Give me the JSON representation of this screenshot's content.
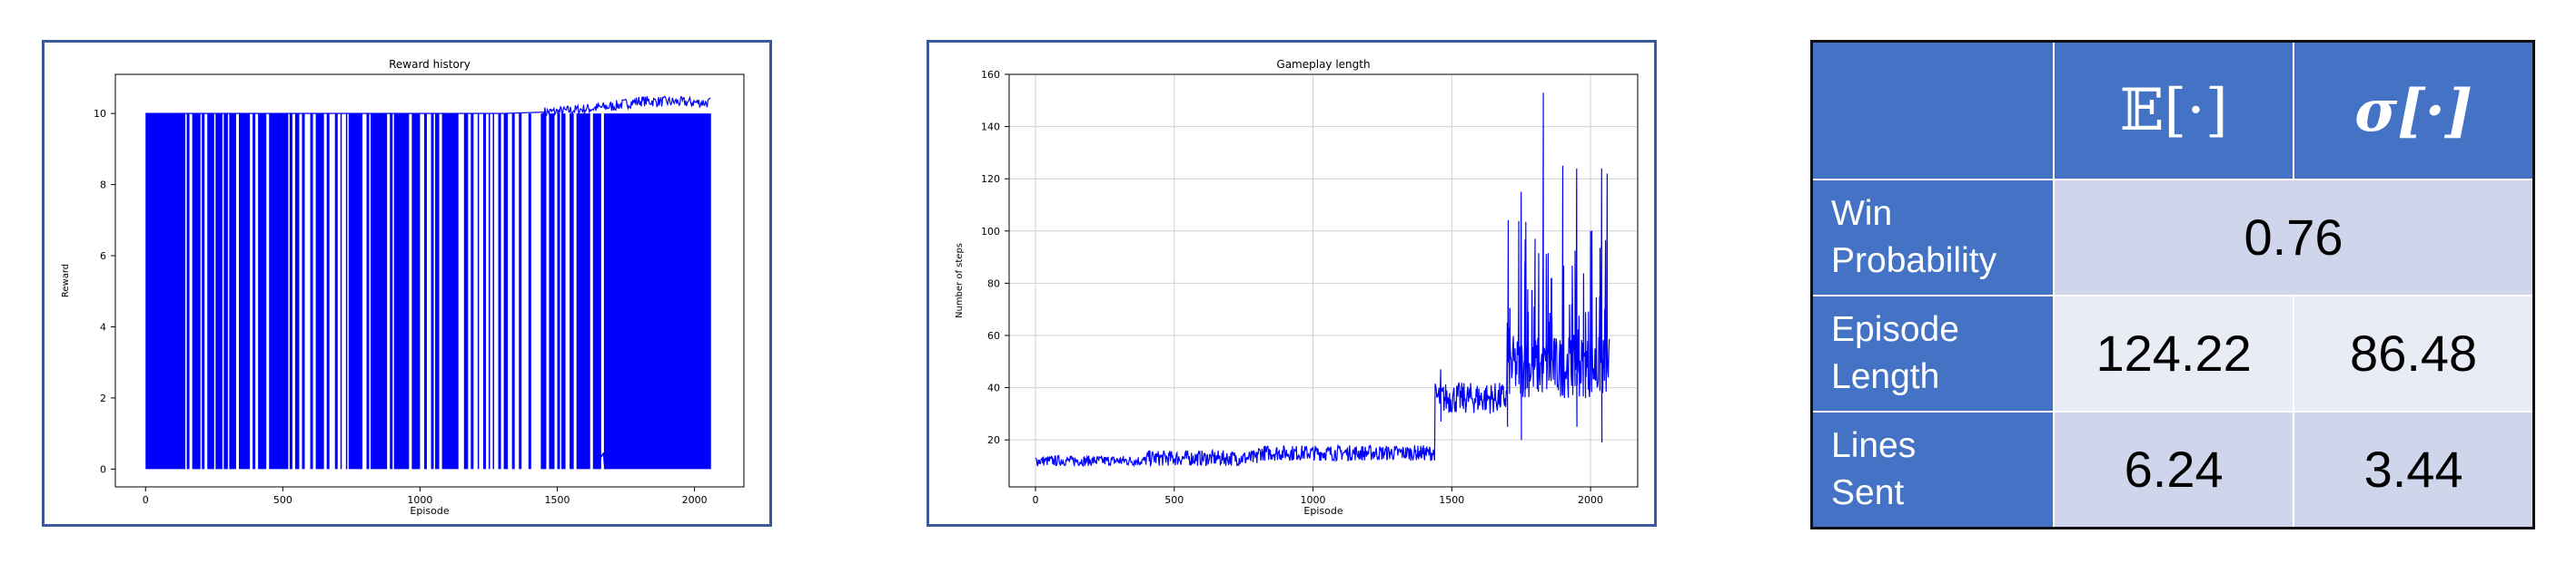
{
  "chart_data": [
    {
      "type": "line",
      "title": "Reward history",
      "xlabel": "Episode",
      "ylabel": "Reward",
      "xlim": [
        -110,
        2180
      ],
      "ylim": [
        -0.5,
        11.1
      ],
      "xticks": [
        0,
        500,
        1000,
        1500,
        2000
      ],
      "yticks": [
        0,
        2,
        4,
        6,
        8,
        10
      ],
      "grid": false,
      "color": "#0000ff",
      "series": [
        {
          "x_range": [
            0,
            2060
          ],
          "level_high": 10,
          "level_low": 0,
          "description_points": [
            [
              0,
              10
            ],
            [
              80,
              10
            ],
            [
              1300,
              10
            ],
            [
              1500,
              10.05
            ],
            [
              1700,
              10.2
            ],
            [
              1800,
              10.35
            ],
            [
              2060,
              10.3
            ]
          ]
        }
      ],
      "low_segments": [
        [
          0,
          145
        ],
        [
          150,
          160
        ],
        [
          170,
          200
        ],
        [
          205,
          215
        ],
        [
          225,
          250
        ],
        [
          255,
          280
        ],
        [
          285,
          300
        ],
        [
          305,
          330
        ],
        [
          340,
          380
        ],
        [
          390,
          400
        ],
        [
          410,
          440
        ],
        [
          450,
          520
        ],
        [
          525,
          535
        ],
        [
          545,
          560
        ],
        [
          570,
          580
        ],
        [
          600,
          610
        ],
        [
          620,
          650
        ],
        [
          660,
          670
        ],
        [
          690,
          700
        ],
        [
          710,
          715
        ],
        [
          730,
          735
        ],
        [
          740,
          790
        ],
        [
          805,
          815
        ],
        [
          820,
          880
        ],
        [
          890,
          900
        ],
        [
          905,
          960
        ],
        [
          970,
          1000
        ],
        [
          1015,
          1025
        ],
        [
          1040,
          1050
        ],
        [
          1055,
          1070
        ],
        [
          1080,
          1140
        ],
        [
          1160,
          1175
        ],
        [
          1185,
          1195
        ],
        [
          1210,
          1215
        ],
        [
          1230,
          1240
        ],
        [
          1250,
          1255
        ],
        [
          1265,
          1270
        ],
        [
          1285,
          1295
        ],
        [
          1305,
          1320
        ],
        [
          1335,
          1345
        ],
        [
          1360,
          1370
        ],
        [
          1395,
          1405
        ],
        [
          1440,
          1460
        ],
        [
          1470,
          1490
        ],
        [
          1500,
          1510
        ],
        [
          1515,
          1530
        ],
        [
          1545,
          1560
        ],
        [
          1570,
          1620
        ],
        [
          1630,
          1660
        ],
        [
          1670,
          2060
        ]
      ]
    },
    {
      "type": "line",
      "title": "Gameplay length",
      "xlabel": "Episode",
      "ylabel": "Number of steps",
      "xlim": [
        -95,
        2170
      ],
      "ylim": [
        2,
        160
      ],
      "xticks": [
        0,
        500,
        1000,
        1500,
        2000
      ],
      "yticks": [
        20,
        40,
        60,
        80,
        100,
        120,
        140,
        160
      ],
      "grid": true,
      "color": "#0000ff",
      "series": [
        {
          "name": "",
          "segments": [
            {
              "x": [
                0,
                400
              ],
              "base": 12,
              "noise": 2
            },
            {
              "x": [
                400,
                800
              ],
              "base": 13,
              "noise": 3
            },
            {
              "x": [
                800,
                1440
              ],
              "base": 15,
              "noise": 3
            },
            {
              "x": [
                1440,
                1700
              ],
              "base": 36,
              "noise": 6
            },
            {
              "x": [
                1700,
                2070
              ],
              "base": 48,
              "noise": 12
            }
          ],
          "peaks": [
            [
              1460,
              47
            ],
            [
              1700,
              65
            ],
            [
              1750,
              115
            ],
            [
              1800,
              97
            ],
            [
              1830,
              153
            ],
            [
              1860,
              82
            ],
            [
              1900,
              125
            ],
            [
              1950,
              124
            ],
            [
              2000,
              100
            ],
            [
              2040,
              124
            ],
            [
              2060,
              122
            ]
          ],
          "dips": [
            [
              1460,
              27
            ],
            [
              1700,
              25
            ],
            [
              1750,
              20
            ],
            [
              1950,
              25
            ],
            [
              2040,
              19
            ]
          ]
        }
      ]
    }
  ],
  "table": {
    "headers": [
      "",
      "𝔼[·]",
      "σ[·]"
    ],
    "rows": [
      {
        "label_lines": [
          "Win",
          "Probability"
        ],
        "merged_value": "0.76"
      },
      {
        "label_lines": [
          "Episode",
          "Length"
        ],
        "mean": "124.22",
        "std": "86.48"
      },
      {
        "label_lines": [
          "Lines",
          "Sent"
        ],
        "mean": "6.24",
        "std": "3.44"
      }
    ]
  },
  "colors": {
    "panel_border": "#3a5a99",
    "table_header": "#4472c4",
    "table_shade_a": "#cfd5ea",
    "table_shade_b": "#e9ebf5",
    "line": "#0000ff"
  }
}
